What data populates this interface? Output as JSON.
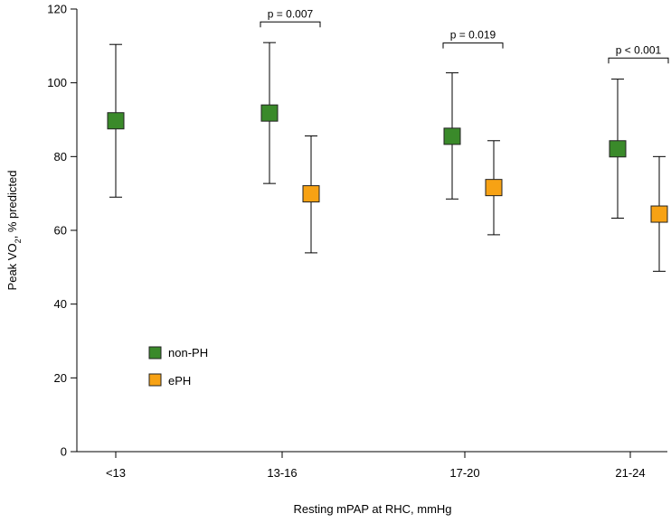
{
  "chart_data": {
    "type": "scatter",
    "subtype": "mean-with-error-bars",
    "title": "",
    "xlabel": "Resting mPAP at RHC, mmHg",
    "ylabel_main": "Peak VO",
    "ylabel_sub": "2",
    "ylabel_rest": ", % predicted",
    "ylim": [
      0,
      120
    ],
    "yticks": [
      0,
      20,
      40,
      60,
      80,
      100,
      120
    ],
    "categories": [
      "<13",
      "13-16",
      "17-20",
      "21-24"
    ],
    "grid": false,
    "legend_position": "lower-left",
    "series": [
      {
        "name": "non-PH",
        "color": "#3a8a2a",
        "marker": "square",
        "values": [
          89.7,
          91.8,
          85.5,
          82.1
        ],
        "upper": [
          110.4,
          110.9,
          102.7,
          101.0
        ],
        "lower": [
          69.0,
          72.7,
          68.5,
          63.3
        ]
      },
      {
        "name": "ePH",
        "color": "#f7a214",
        "marker": "square",
        "values": [
          null,
          69.9,
          71.6,
          64.4
        ],
        "upper": [
          null,
          85.6,
          84.3,
          80.0
        ],
        "lower": [
          null,
          53.9,
          58.8,
          48.9
        ]
      }
    ],
    "annotations": [
      {
        "category_index": 1,
        "text": "p = 0.007",
        "bracket_y": 116.5
      },
      {
        "category_index": 2,
        "text": "p = 0.019",
        "bracket_y": 110.8
      },
      {
        "category_index": 3,
        "text": "p < 0.001",
        "bracket_y": 106.7
      }
    ]
  }
}
